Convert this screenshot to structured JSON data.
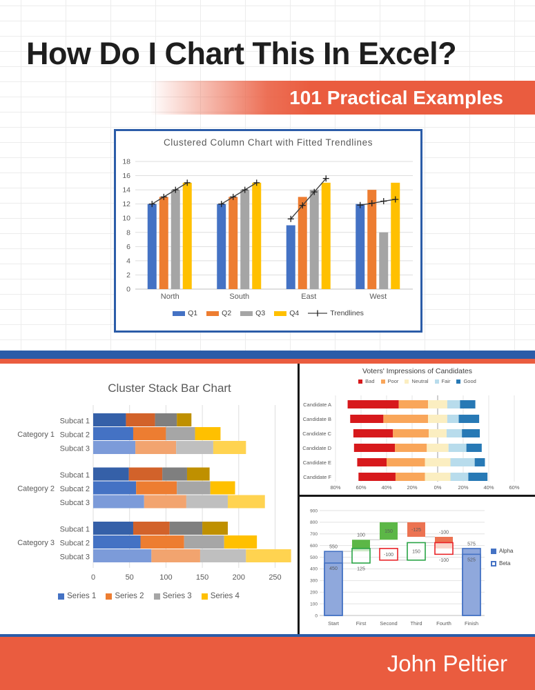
{
  "page": {
    "title": "How Do I Chart This In Excel?",
    "banner": "101 Practical Examples",
    "author": "John Peltier"
  },
  "colors": {
    "accent_blue": "#2B5CA8",
    "accent_orange": "#EA5C3F",
    "panel_border_black": "#161616",
    "office_blue": "#4472C4",
    "office_orange": "#ED7D31",
    "office_gray": "#A5A5A5",
    "office_yellow": "#FFC000"
  },
  "chart_data": [
    {
      "id": "clustered-column-trendlines",
      "type": "bar",
      "title": "Clustered Column Chart with Fitted Trendlines",
      "categories": [
        "North",
        "South",
        "East",
        "West"
      ],
      "series": [
        {
          "name": "Q1",
          "color": "#4472C4",
          "values": [
            12,
            12,
            9,
            12
          ]
        },
        {
          "name": "Q2",
          "color": "#ED7D31",
          "values": [
            13,
            13,
            13,
            14
          ]
        },
        {
          "name": "Q3",
          "color": "#A5A5A5",
          "values": [
            14,
            14,
            14,
            8
          ]
        },
        {
          "name": "Q4",
          "color": "#FFC000",
          "values": [
            15,
            15,
            15,
            15
          ]
        }
      ],
      "trendlines": {
        "name": "Trendlines",
        "color": "#404040",
        "points": [
          [
            12,
            13,
            14,
            15
          ],
          [
            12,
            13,
            14,
            15
          ],
          [
            9.9,
            11.8,
            13.7,
            15.6
          ],
          [
            11.85,
            12.1,
            12.4,
            12.65
          ]
        ]
      },
      "ylim": [
        0,
        18
      ],
      "ytick": 2,
      "grid": true,
      "legend_position": "bottom"
    },
    {
      "id": "cluster-stack-bar",
      "type": "bar",
      "orientation": "horizontal",
      "title": "Cluster Stack Bar Chart",
      "series": [
        {
          "name": "Series 1",
          "shades": [
            "#3560A8",
            "#4472C4",
            "#7C9BD9"
          ]
        },
        {
          "name": "Series 2",
          "shades": [
            "#D2622A",
            "#ED7D31",
            "#F2A46F"
          ]
        },
        {
          "name": "Series 3",
          "shades": [
            "#7F7F7F",
            "#A6A6A6",
            "#BFBFBF"
          ]
        },
        {
          "name": "Series 4",
          "shades": [
            "#BF9000",
            "#FFC000",
            "#FFD350"
          ]
        }
      ],
      "groups": [
        {
          "label": "Category 1",
          "rows": [
            {
              "label": "Subcat 1",
              "values": [
                45,
                40,
                30,
                20
              ]
            },
            {
              "label": "Subcat 2",
              "values": [
                55,
                45,
                40,
                35
              ]
            },
            {
              "label": "Subcat 3",
              "values": [
                58,
                56,
                51,
                45
              ]
            }
          ]
        },
        {
          "label": "Category 2",
          "rows": [
            {
              "label": "Subcat 1",
              "values": [
                49,
                46,
                34,
                31
              ]
            },
            {
              "label": "Subcat 2",
              "values": [
                59,
                56,
                46,
                34
              ]
            },
            {
              "label": "Subcat 3",
              "values": [
                70,
                58,
                57,
                51
              ]
            }
          ]
        },
        {
          "label": "Category 3",
          "rows": [
            {
              "label": "Subcat 1",
              "values": [
                55,
                50,
                45,
                35
              ]
            },
            {
              "label": "Subcat 2",
              "values": [
                65,
                60,
                55,
                45
              ]
            },
            {
              "label": "Subcat 3",
              "values": [
                80,
                67,
                63,
                62
              ]
            }
          ]
        }
      ],
      "xlim": [
        0,
        250
      ],
      "xtick": 50,
      "grid": true,
      "legend_position": "bottom"
    },
    {
      "id": "voters-impressions",
      "type": "bar",
      "subtype": "diverging-stacked",
      "title": "Voters' Impressions of Candidates",
      "categories": [
        "Candidate A",
        "Candidate B",
        "Candidate C",
        "Candidate D",
        "Candidate E",
        "Candidate F"
      ],
      "series": [
        {
          "name": "Bad",
          "color": "#D7191C",
          "values": [
            40,
            26,
            31,
            32,
            23,
            29
          ]
        },
        {
          "name": "Poor",
          "color": "#F9A65A",
          "values": [
            23,
            35,
            28,
            25,
            30,
            23
          ]
        },
        {
          "name": "Neutral",
          "color": "#FBEEC1",
          "values": [
            15,
            15,
            14,
            17,
            20,
            20
          ]
        },
        {
          "name": "Fair",
          "color": "#B8DCEC",
          "values": [
            10,
            9,
            12,
            14,
            19,
            14
          ]
        },
        {
          "name": "Good",
          "color": "#2779B5",
          "values": [
            12,
            16,
            14,
            12,
            8,
            15
          ]
        }
      ],
      "axis_values": [
        -80,
        -60,
        -40,
        -20,
        0,
        20,
        40,
        60
      ],
      "axis_ticks": [
        "80%",
        "60%",
        "40%",
        "20%",
        "0%",
        "20%",
        "40%",
        "60%"
      ],
      "note": "Neutral segment centered on zero",
      "legend_position": "top"
    },
    {
      "id": "paired-waterfall",
      "type": "bar",
      "subtype": "paired-waterfall",
      "categories": [
        "Start",
        "First",
        "Second",
        "Third",
        "Fourth",
        "Finish"
      ],
      "ylim": [
        0,
        900
      ],
      "ytick": 100,
      "legend_position": "right",
      "series": [
        {
          "name": "Alpha",
          "legend_swatch": "filled",
          "color": "#4472C4",
          "bars": [
            {
              "category": "Start",
              "from": 0,
              "to": 550,
              "fill": "#8FA8DC",
              "stroke": "#4472C4",
              "label": "550",
              "label_pos": "above"
            },
            {
              "category": "First",
              "from": 550,
              "to": 650,
              "fill": "#5CB747",
              "label": "100",
              "label_pos": "above"
            },
            {
              "category": "Second",
              "from": 650,
              "to": 800,
              "fill": "#5CB747",
              "label": "150",
              "label_pos": "inside"
            },
            {
              "category": "Third",
              "from": 800,
              "to": 675,
              "fill": "#EC7352",
              "label": "-125",
              "label_pos": "inside"
            },
            {
              "category": "Fourth",
              "from": 675,
              "to": 575,
              "fill": "#EC7352",
              "label": "-100",
              "label_pos": "above"
            },
            {
              "category": "Finish",
              "from": 0,
              "to": 575,
              "fill": "#8FA8DC",
              "stroke": "#4472C4",
              "label": "575",
              "label_pos": "above"
            }
          ],
          "connectors": [
            {
              "fromIndex": 0,
              "toIndex": 1,
              "level": 550
            },
            {
              "fromIndex": 1,
              "toIndex": 2,
              "level": 650
            },
            {
              "fromIndex": 2,
              "toIndex": 3,
              "level": 800
            },
            {
              "fromIndex": 3,
              "toIndex": 4,
              "level": 675
            },
            {
              "fromIndex": 4,
              "toIndex": 5,
              "level": 575
            }
          ]
        },
        {
          "name": "Beta",
          "legend_swatch": "outlined",
          "color": "#4472C4",
          "bars": [
            {
              "category": "Start",
              "from": 0,
              "to": 450,
              "fill": "none",
              "stroke": "#4472C4",
              "label": "450",
              "label_pos": "inside-top"
            },
            {
              "category": "First",
              "from": 450,
              "to": 575,
              "fill": "#FFFFFF",
              "fill_opacity": 0.7,
              "stroke": "#27A344",
              "label": "125",
              "label_pos": "below"
            },
            {
              "category": "Second",
              "from": 575,
              "to": 475,
              "fill": "#FFFFFF",
              "fill_opacity": 0.7,
              "stroke": "#E92227",
              "label": "-100",
              "label_pos": "inside"
            },
            {
              "category": "Third",
              "from": 475,
              "to": 625,
              "fill": "#FFFFFF",
              "fill_opacity": 0.7,
              "stroke": "#27A344",
              "label": "150",
              "label_pos": "inside"
            },
            {
              "category": "Fourth",
              "from": 625,
              "to": 525,
              "fill": "#FFFFFF",
              "fill_opacity": 0.7,
              "stroke": "#E92227",
              "label": "-100",
              "label_pos": "below"
            },
            {
              "category": "Finish",
              "from": 0,
              "to": 525,
              "fill": "none",
              "stroke": "#4472C4",
              "label": "525",
              "label_pos": "inside-top"
            }
          ],
          "connectors": [
            {
              "fromIndex": 0,
              "toIndex": 1,
              "level": 450
            },
            {
              "fromIndex": 1,
              "toIndex": 2,
              "level": 575
            },
            {
              "fromIndex": 2,
              "toIndex": 3,
              "level": 475
            },
            {
              "fromIndex": 3,
              "toIndex": 4,
              "level": 625
            },
            {
              "fromIndex": 4,
              "toIndex": 5,
              "level": 525
            }
          ]
        }
      ]
    }
  ]
}
